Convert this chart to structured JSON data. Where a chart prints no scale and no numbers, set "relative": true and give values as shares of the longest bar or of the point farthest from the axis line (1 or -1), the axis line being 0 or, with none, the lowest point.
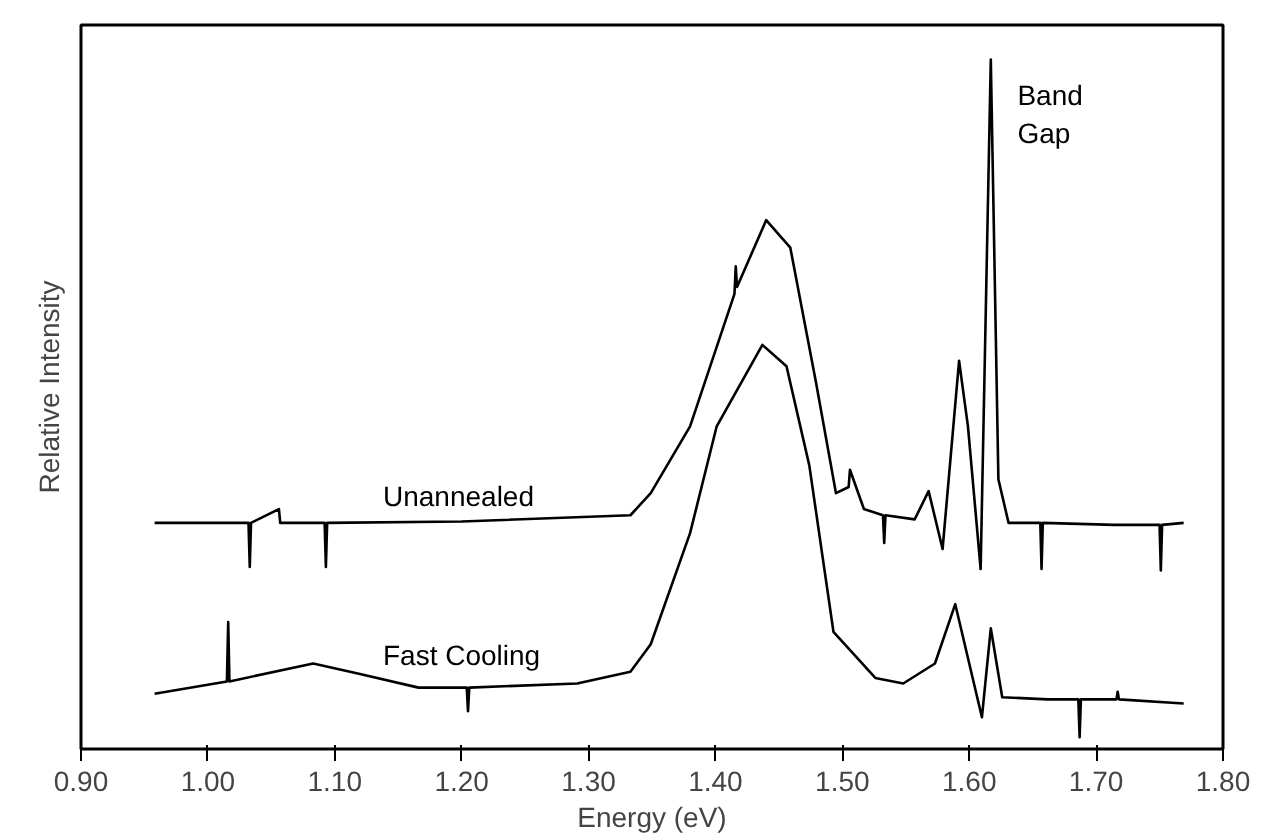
{
  "chart_data": {
    "type": "line",
    "relative": true,
    "xlabel": "Energy (eV)",
    "ylabel": "Relative Intensity",
    "xlim": [
      0.9,
      1.8
    ],
    "xticks": [
      {
        "value": 0.9,
        "label": "0.90"
      },
      {
        "value": 1.0,
        "label": "1.00"
      },
      {
        "value": 1.1,
        "label": "1.10"
      },
      {
        "value": 1.2,
        "label": "1.20"
      },
      {
        "value": 1.3,
        "label": "1.30"
      },
      {
        "value": 1.4,
        "label": "1.40"
      },
      {
        "value": 1.5,
        "label": "1.50"
      },
      {
        "value": 1.6,
        "label": "1.60"
      },
      {
        "value": 1.7,
        "label": "1.70"
      },
      {
        "value": 1.8,
        "label": "1.80"
      }
    ],
    "grid": false,
    "marker": "none",
    "line_style": "solid",
    "annotations": [
      "Band Gap"
    ],
    "series": [
      {
        "name": "Unannealed",
        "color": "#000000",
        "x": [
          0.958,
          1.032,
          1.033,
          1.034,
          1.056,
          1.057,
          1.092,
          1.093,
          1.094,
          1.2,
          1.333,
          1.349,
          1.38,
          1.415,
          1.416,
          1.417,
          1.44,
          1.459,
          1.479,
          1.495,
          1.505,
          1.506,
          1.517,
          1.532,
          1.533,
          1.534,
          1.557,
          1.568,
          1.579,
          1.592,
          1.599,
          1.609,
          1.617,
          1.623,
          1.631,
          1.656,
          1.657,
          1.658,
          1.714,
          1.75,
          1.751,
          1.752,
          1.769
        ],
        "values": [
          0.328,
          0.328,
          0.264,
          0.328,
          0.348,
          0.328,
          0.328,
          0.264,
          0.328,
          0.33,
          0.339,
          0.371,
          0.468,
          0.66,
          0.7,
          0.67,
          0.767,
          0.727,
          0.534,
          0.371,
          0.38,
          0.405,
          0.348,
          0.339,
          0.299,
          0.339,
          0.333,
          0.374,
          0.29,
          0.563,
          0.468,
          0.261,
          1.0,
          0.391,
          0.328,
          0.328,
          0.261,
          0.328,
          0.325,
          0.325,
          0.259,
          0.325,
          0.328
        ]
      },
      {
        "name": "Fast Cooling",
        "color": "#000000",
        "x": [
          0.958,
          1.015,
          1.016,
          1.017,
          1.083,
          1.119,
          1.166,
          1.204,
          1.205,
          1.206,
          1.291,
          1.333,
          1.349,
          1.38,
          1.401,
          1.437,
          1.456,
          1.474,
          1.493,
          1.526,
          1.548,
          1.573,
          1.589,
          1.61,
          1.617,
          1.626,
          1.662,
          1.686,
          1.687,
          1.688,
          1.716,
          1.717,
          1.718,
          1.769
        ],
        "values": [
          0.08,
          0.098,
          0.184,
          0.098,
          0.124,
          0.109,
          0.089,
          0.089,
          0.055,
          0.089,
          0.095,
          0.112,
          0.152,
          0.313,
          0.468,
          0.586,
          0.555,
          0.411,
          0.17,
          0.103,
          0.095,
          0.124,
          0.21,
          0.046,
          0.175,
          0.075,
          0.072,
          0.072,
          0.017,
          0.072,
          0.072,
          0.083,
          0.072,
          0.066
        ]
      }
    ]
  }
}
